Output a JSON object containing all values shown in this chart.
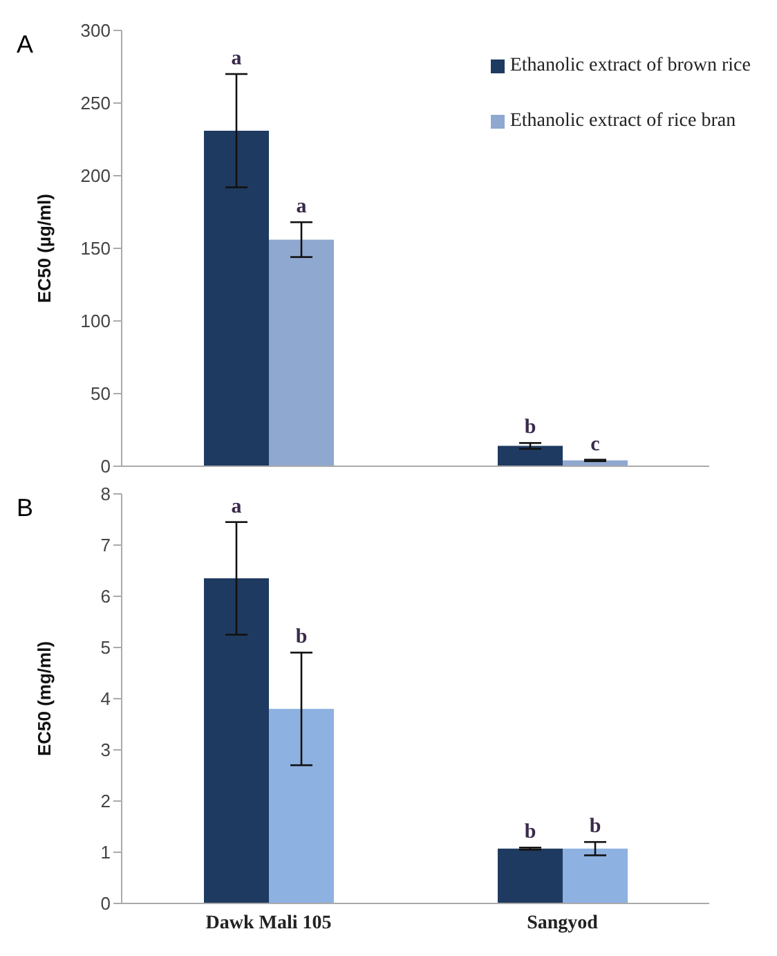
{
  "chart_data": [
    {
      "type": "bar",
      "title": "A",
      "ylabel": "EC50 (µg/ml)",
      "categories": [
        null,
        null
      ],
      "series": [
        {
          "name": "Ethanolic  extract  of brown rice",
          "color": "#1f3a60",
          "values": [
            231,
            14
          ],
          "errors": [
            39,
            2
          ]
        },
        {
          "name": "Ethanolic  extract  of rice bran",
          "color": "#8fa8cf",
          "values": [
            156,
            4
          ],
          "errors": [
            12,
            0.5
          ]
        }
      ],
      "ylim": [
        0,
        300
      ],
      "yticks": [
        0,
        50,
        100,
        150,
        200,
        250,
        300
      ],
      "grid": false,
      "legend": "top right",
      "tick_labels": "y",
      "annotations": [
        "a",
        "a",
        "b",
        "c"
      ]
    },
    {
      "type": "bar",
      "title": "B",
      "ylabel": "EC50 (mg/ml)",
      "categories": [
        "Dawk Mali 105",
        "Sangyod"
      ],
      "series": [
        {
          "color": "#1f3a60",
          "values": [
            6.35,
            1.07
          ],
          "errors": [
            1.1,
            0.02
          ]
        },
        {
          "color": "#8db1e0",
          "values": [
            3.8,
            1.07
          ],
          "errors": [
            1.1,
            0.13
          ]
        }
      ],
      "ylim": [
        0,
        8
      ],
      "yticks": [
        0,
        1,
        2,
        3,
        4,
        5,
        6,
        7,
        8
      ],
      "grid": false,
      "legend": false,
      "annotations": [
        "a",
        "b",
        "b",
        "b"
      ]
    }
  ]
}
